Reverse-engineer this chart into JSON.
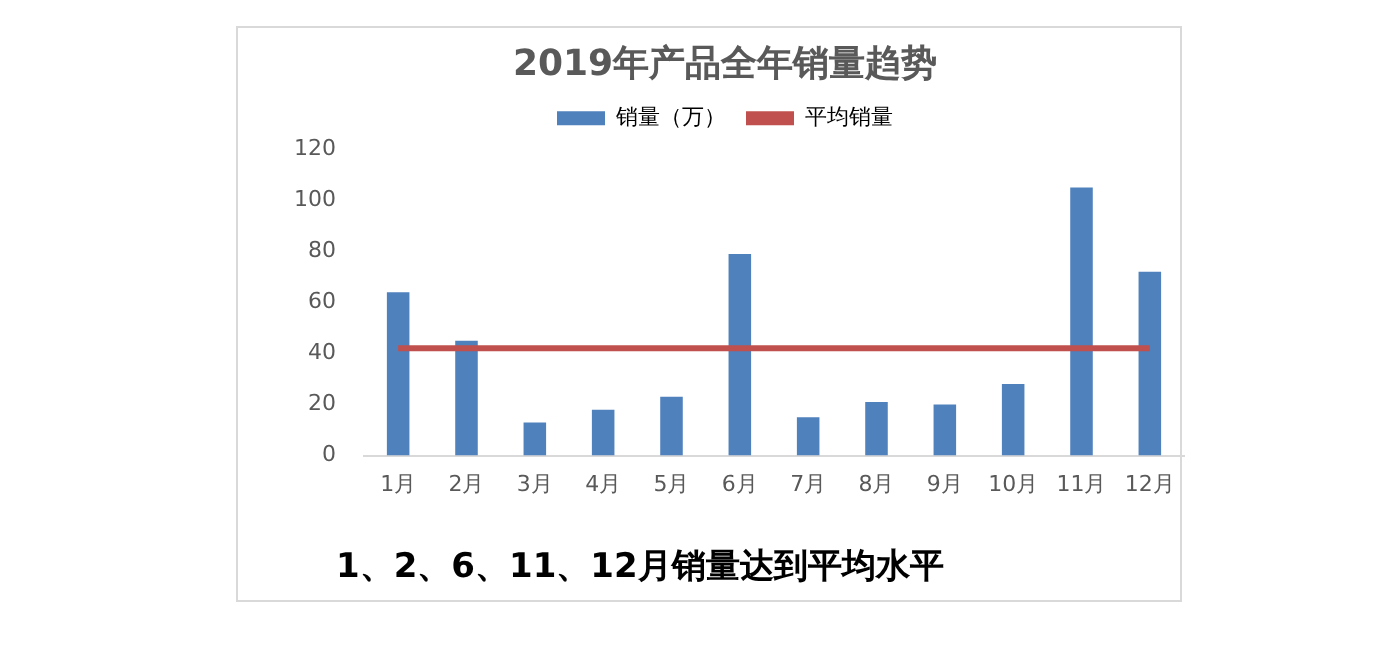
{
  "chart_data": {
    "type": "bar",
    "title": "2019年产品全年销量趋势",
    "categories": [
      "1月",
      "2月",
      "3月",
      "4月",
      "5月",
      "6月",
      "7月",
      "8月",
      "9月",
      "10月",
      "11月",
      "12月"
    ],
    "series": [
      {
        "name": "销量（万）",
        "color": "#4f81bd",
        "values": [
          64,
          45,
          13,
          18,
          23,
          79,
          15,
          21,
          20,
          28,
          105,
          72
        ]
      },
      {
        "name": "平均销量",
        "type": "line",
        "color": "#c0504d",
        "values": [
          42,
          42,
          42,
          42,
          42,
          42,
          42,
          42,
          42,
          42,
          42,
          42
        ]
      }
    ],
    "ylim": [
      0,
      120
    ],
    "yticks": [
      0,
      20,
      40,
      60,
      80,
      100,
      120
    ],
    "grid": false,
    "legend": "top",
    "marker": "none",
    "annotations": [
      "1、2、6、11、12月销量达到平均水平"
    ]
  }
}
